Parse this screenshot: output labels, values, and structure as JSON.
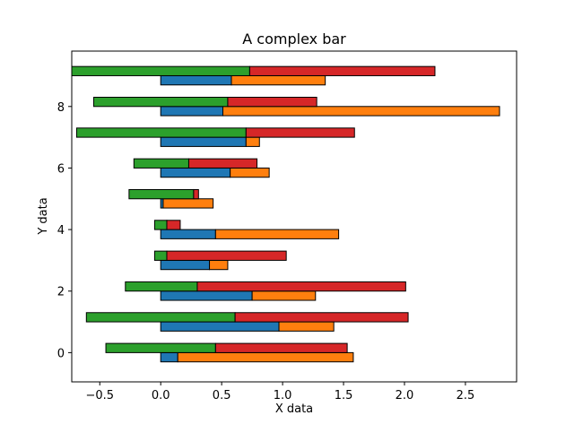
{
  "chart_data": {
    "type": "bar",
    "orientation": "horizontal",
    "layout": "stacked-pairs",
    "title": "A complex bar",
    "xlabel": "X data",
    "ylabel": "Y data",
    "xlim": [
      -0.73,
      2.92
    ],
    "ylim": [
      -0.95,
      9.8
    ],
    "xticks": [
      -0.5,
      0.0,
      0.5,
      1.0,
      1.5,
      2.0,
      2.5
    ],
    "xtick_labels": [
      "−0.5",
      "0.0",
      "0.5",
      "1.0",
      "1.5",
      "2.0",
      "2.5"
    ],
    "yticks": [
      0,
      2,
      4,
      6,
      8
    ],
    "ytick_labels": [
      "0",
      "2",
      "4",
      "6",
      "8"
    ],
    "grid": false,
    "bar_height": 0.3,
    "y": [
      0,
      1,
      2,
      3,
      4,
      5,
      6,
      7,
      8,
      9
    ],
    "series": [
      {
        "color": "#1f77b4",
        "offset": -0.15,
        "left": [
          0,
          0,
          0,
          0,
          0,
          0,
          0,
          0,
          0,
          0
        ],
        "width": [
          0.14,
          0.97,
          0.75,
          0.4,
          0.45,
          0.02,
          0.57,
          0.7,
          0.51,
          0.58
        ]
      },
      {
        "color": "#ff7f0e",
        "offset": -0.15,
        "left": [
          0.14,
          0.97,
          0.75,
          0.4,
          0.45,
          0.02,
          0.57,
          0.7,
          0.51,
          0.58
        ],
        "width": [
          1.44,
          0.45,
          0.52,
          0.15,
          1.01,
          0.41,
          0.32,
          0.11,
          2.27,
          0.77
        ]
      },
      {
        "color": "#2ca02c",
        "offset": 0.15,
        "left": [
          -0.45,
          -0.61,
          -0.29,
          -0.05,
          -0.05,
          -0.26,
          -0.22,
          -0.69,
          -0.55,
          -0.73
        ],
        "width": [
          0.9,
          1.22,
          0.59,
          0.1,
          0.1,
          0.53,
          0.45,
          1.39,
          1.1,
          1.46
        ]
      },
      {
        "color": "#d62728",
        "offset": 0.15,
        "left": [
          0.45,
          0.61,
          0.3,
          0.05,
          0.05,
          0.27,
          0.23,
          0.7,
          0.55,
          0.73
        ],
        "width": [
          1.08,
          1.42,
          1.71,
          0.98,
          0.11,
          0.04,
          0.56,
          0.89,
          0.73,
          1.52
        ]
      }
    ]
  }
}
